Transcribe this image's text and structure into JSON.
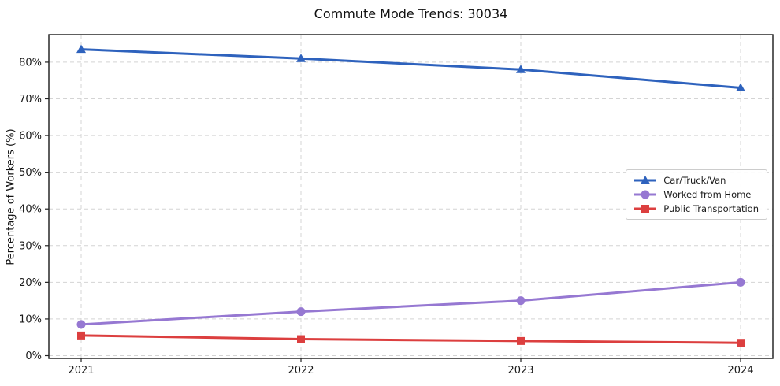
{
  "chart_data": {
    "type": "line",
    "title": "Commute Mode Trends: 30034",
    "xlabel": "",
    "ylabel": "Percentage of Workers (%)",
    "categories": [
      "2021",
      "2022",
      "2023",
      "2024"
    ],
    "series": [
      {
        "name": "Car/Truck/Van",
        "color": "#2e62bd",
        "marker": "triangle",
        "values": [
          83.5,
          81,
          78,
          73
        ]
      },
      {
        "name": "Worked from Home",
        "color": "#9678d2",
        "marker": "circle",
        "values": [
          8.5,
          12,
          15,
          20
        ]
      },
      {
        "name": "Public Transportation",
        "color": "#dc3f3f",
        "marker": "square",
        "values": [
          5.5,
          4.5,
          4,
          3.5
        ]
      }
    ],
    "ylim": [
      -0.75,
      87.5
    ],
    "yticks": [
      0,
      10,
      20,
      30,
      40,
      50,
      60,
      70,
      80
    ],
    "ytick_labels": [
      "0%",
      "10%",
      "20%",
      "30%",
      "40%",
      "50%",
      "60%",
      "70%",
      "80%"
    ],
    "grid": true,
    "grid_style": "dashed",
    "grid_color": "#d4d4d4",
    "spine_color": "#1a1a1a",
    "legend_position": "center right"
  }
}
